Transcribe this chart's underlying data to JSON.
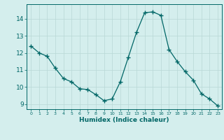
{
  "x": [
    0,
    1,
    2,
    3,
    4,
    5,
    6,
    7,
    8,
    9,
    10,
    11,
    12,
    13,
    14,
    15,
    16,
    17,
    18,
    19,
    20,
    21,
    22,
    23
  ],
  "y": [
    12.4,
    12.0,
    11.8,
    11.1,
    10.5,
    10.3,
    9.9,
    9.85,
    9.55,
    9.2,
    9.3,
    10.3,
    11.75,
    13.2,
    14.35,
    14.4,
    14.2,
    12.2,
    11.5,
    10.9,
    10.4,
    9.6,
    9.3,
    8.9
  ],
  "xlabel": "Humidex (Indice chaleur)",
  "bg_color": "#d4eeed",
  "line_color": "#006666",
  "marker_color": "#006666",
  "grid_color": "#b8d8d6",
  "axis_color": "#006666",
  "tick_label_color": "#006666",
  "xlabel_color": "#006666",
  "xlim": [
    -0.5,
    23.5
  ],
  "ylim": [
    8.7,
    14.85
  ],
  "yticks": [
    9,
    10,
    11,
    12,
    13,
    14
  ],
  "xticks": [
    0,
    1,
    2,
    3,
    4,
    5,
    6,
    7,
    8,
    9,
    10,
    11,
    12,
    13,
    14,
    15,
    16,
    17,
    18,
    19,
    20,
    21,
    22,
    23
  ]
}
